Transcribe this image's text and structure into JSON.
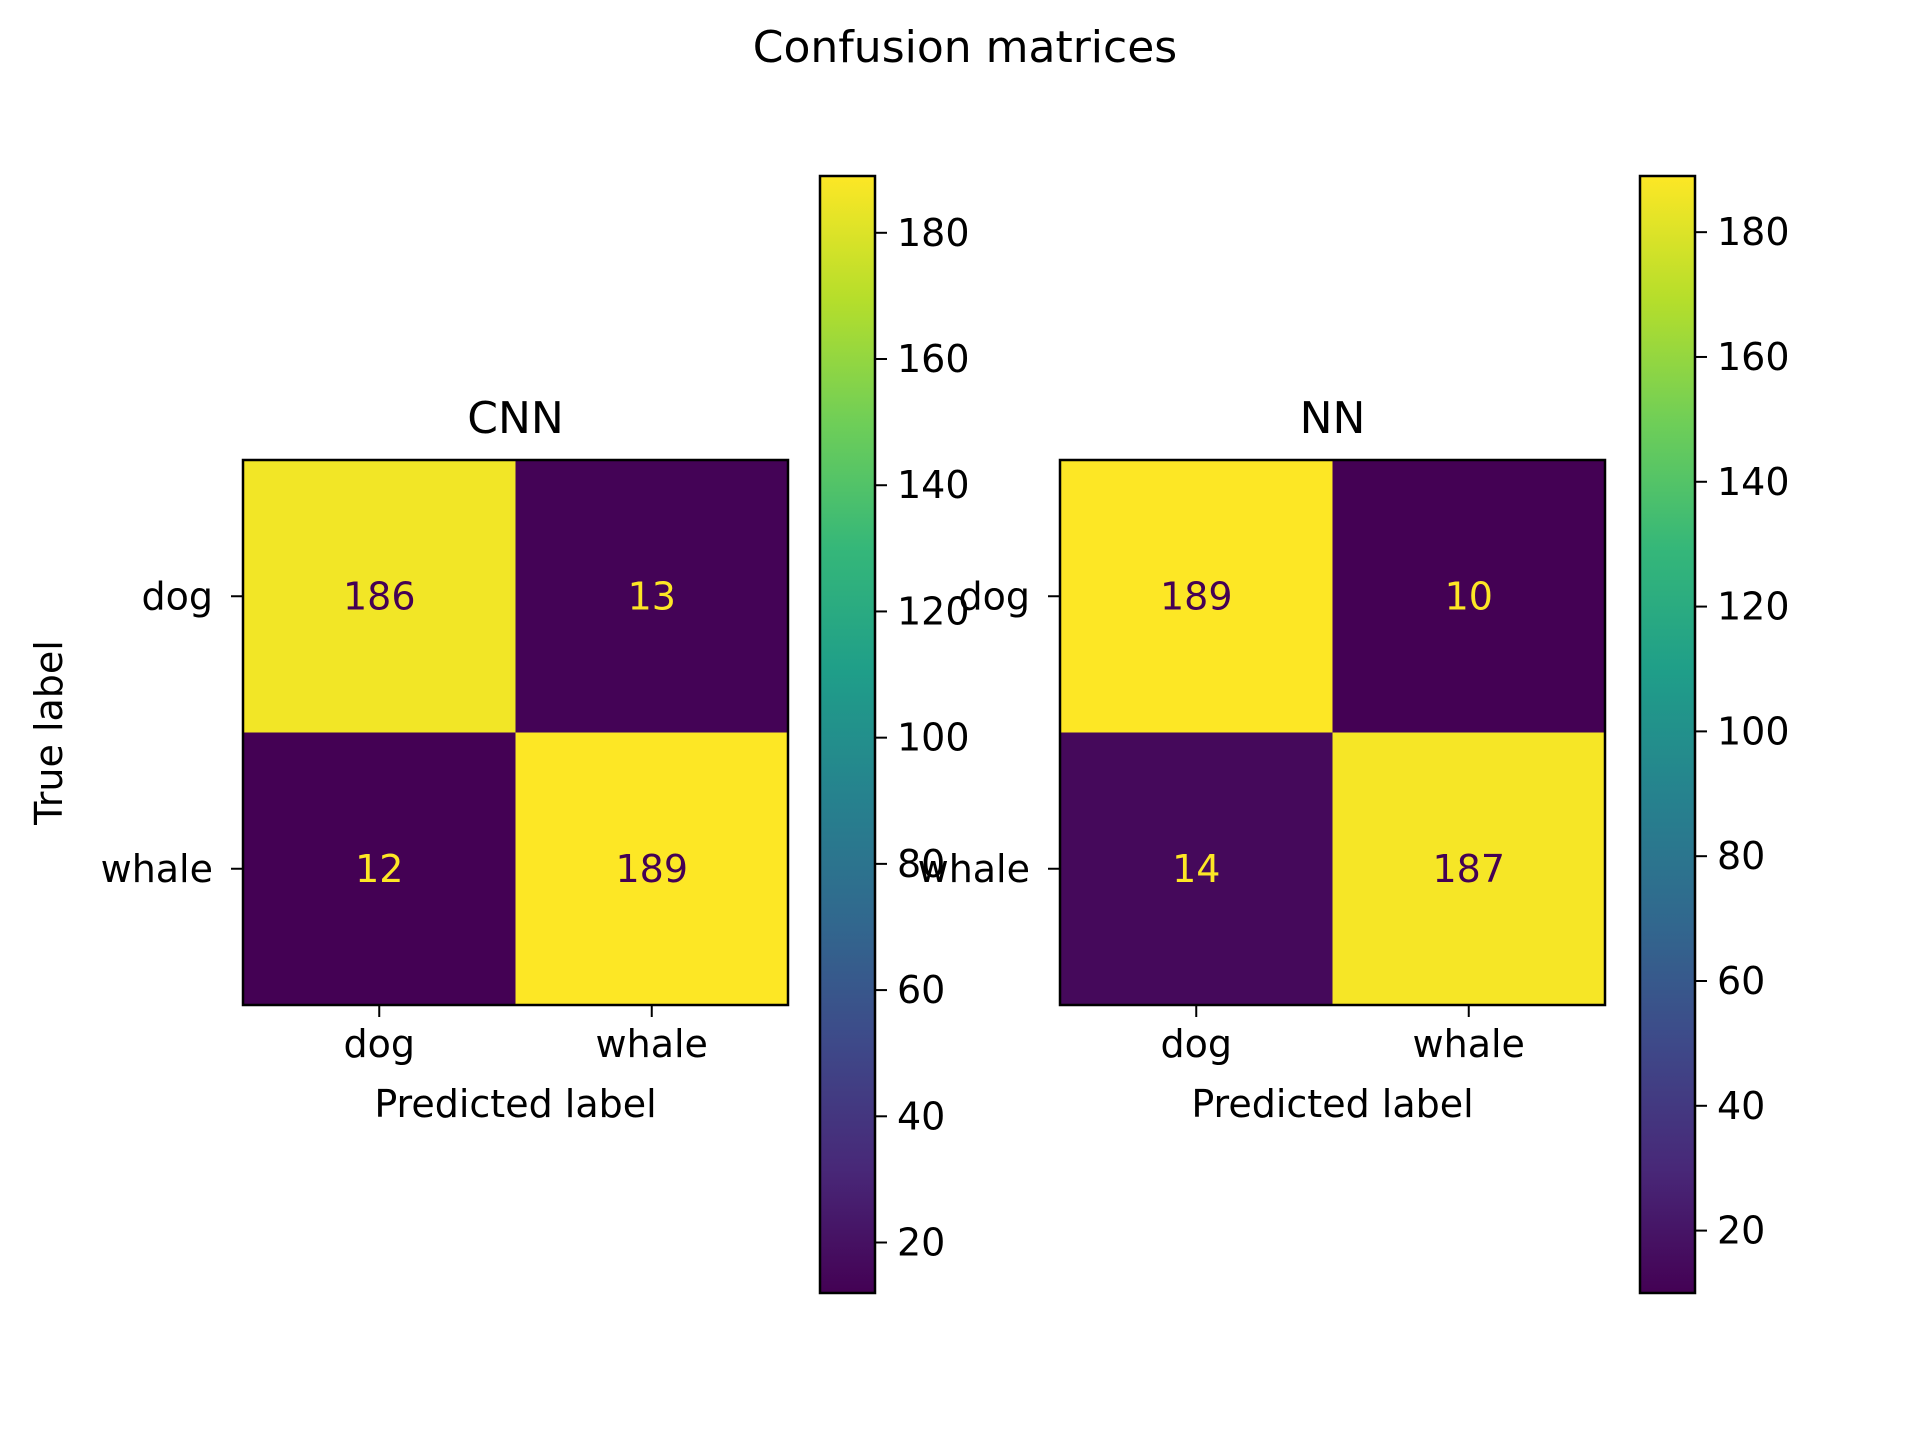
{
  "figure": {
    "suptitle": "Confusion matrices"
  },
  "colormap": {
    "name": "viridis",
    "stops": [
      "#440154",
      "#482878",
      "#3e4989",
      "#31688e",
      "#26828e",
      "#1f9e89",
      "#35b779",
      "#6ece58",
      "#b5de2b",
      "#fde725"
    ]
  },
  "chart_data": [
    {
      "type": "heatmap",
      "title": "CNN",
      "xlabel": "Predicted label",
      "ylabel": "True label",
      "x_categories": [
        "dog",
        "whale"
      ],
      "y_categories": [
        "dog",
        "whale"
      ],
      "values": [
        [
          186,
          13
        ],
        [
          12,
          189
        ]
      ],
      "colorbar": {
        "vmin": 12,
        "vmax": 189,
        "ticks": [
          20,
          40,
          60,
          80,
          100,
          120,
          140,
          160,
          180
        ]
      }
    },
    {
      "type": "heatmap",
      "title": "NN",
      "xlabel": "Predicted label",
      "ylabel": "",
      "x_categories": [
        "dog",
        "whale"
      ],
      "y_categories": [
        "dog",
        "whale"
      ],
      "values": [
        [
          189,
          10
        ],
        [
          14,
          187
        ]
      ],
      "colorbar": {
        "vmin": 10,
        "vmax": 189,
        "ticks": [
          20,
          40,
          60,
          80,
          100,
          120,
          140,
          160,
          180
        ]
      }
    }
  ]
}
